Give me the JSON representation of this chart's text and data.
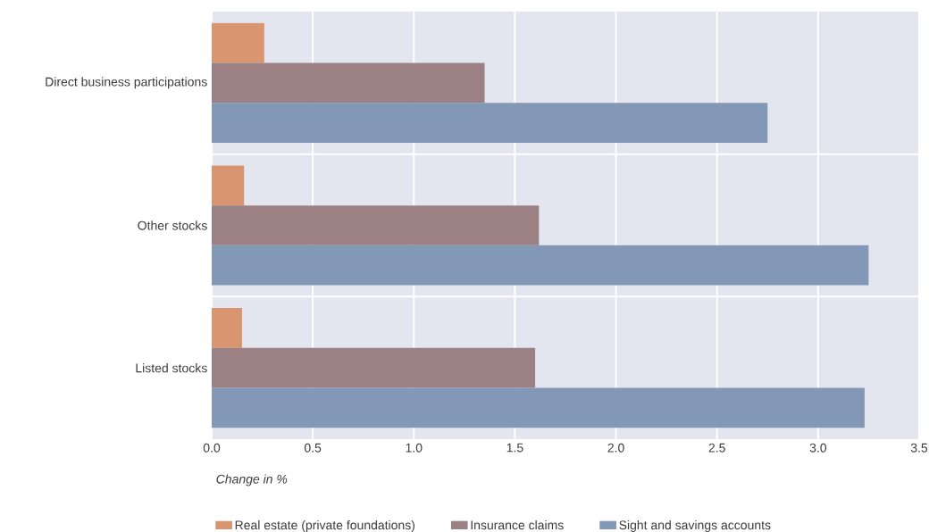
{
  "chart_data": {
    "type": "bar",
    "orientation": "horizontal",
    "xlabel": "Change in %",
    "categories": [
      "Direct business participations",
      "Other stocks",
      "Listed stocks"
    ],
    "series": [
      {
        "name": "Real estate (private foundations)",
        "color": "#d9956f",
        "values": [
          0.26,
          0.16,
          0.15
        ]
      },
      {
        "name": "Insurance claims",
        "color": "#9b8183",
        "values": [
          1.35,
          1.62,
          1.6
        ]
      },
      {
        "name": "Sight and savings accounts",
        "color": "#8398b7",
        "values": [
          2.75,
          3.25,
          3.23
        ]
      }
    ],
    "xlim": [
      0,
      3.5
    ],
    "xticks": [
      {
        "value": 0,
        "label": "0.0"
      },
      {
        "value": 0.5,
        "label": "0.5"
      },
      {
        "value": 1,
        "label": "1.0"
      },
      {
        "value": 1.5,
        "label": "1.5"
      },
      {
        "value": 2,
        "label": "2.0"
      },
      {
        "value": 2.5,
        "label": "2.5"
      },
      {
        "value": 3,
        "label": "3.0"
      },
      {
        "value": 3.5,
        "label": "3.5"
      }
    ],
    "grid": true,
    "legend": "bottom"
  }
}
